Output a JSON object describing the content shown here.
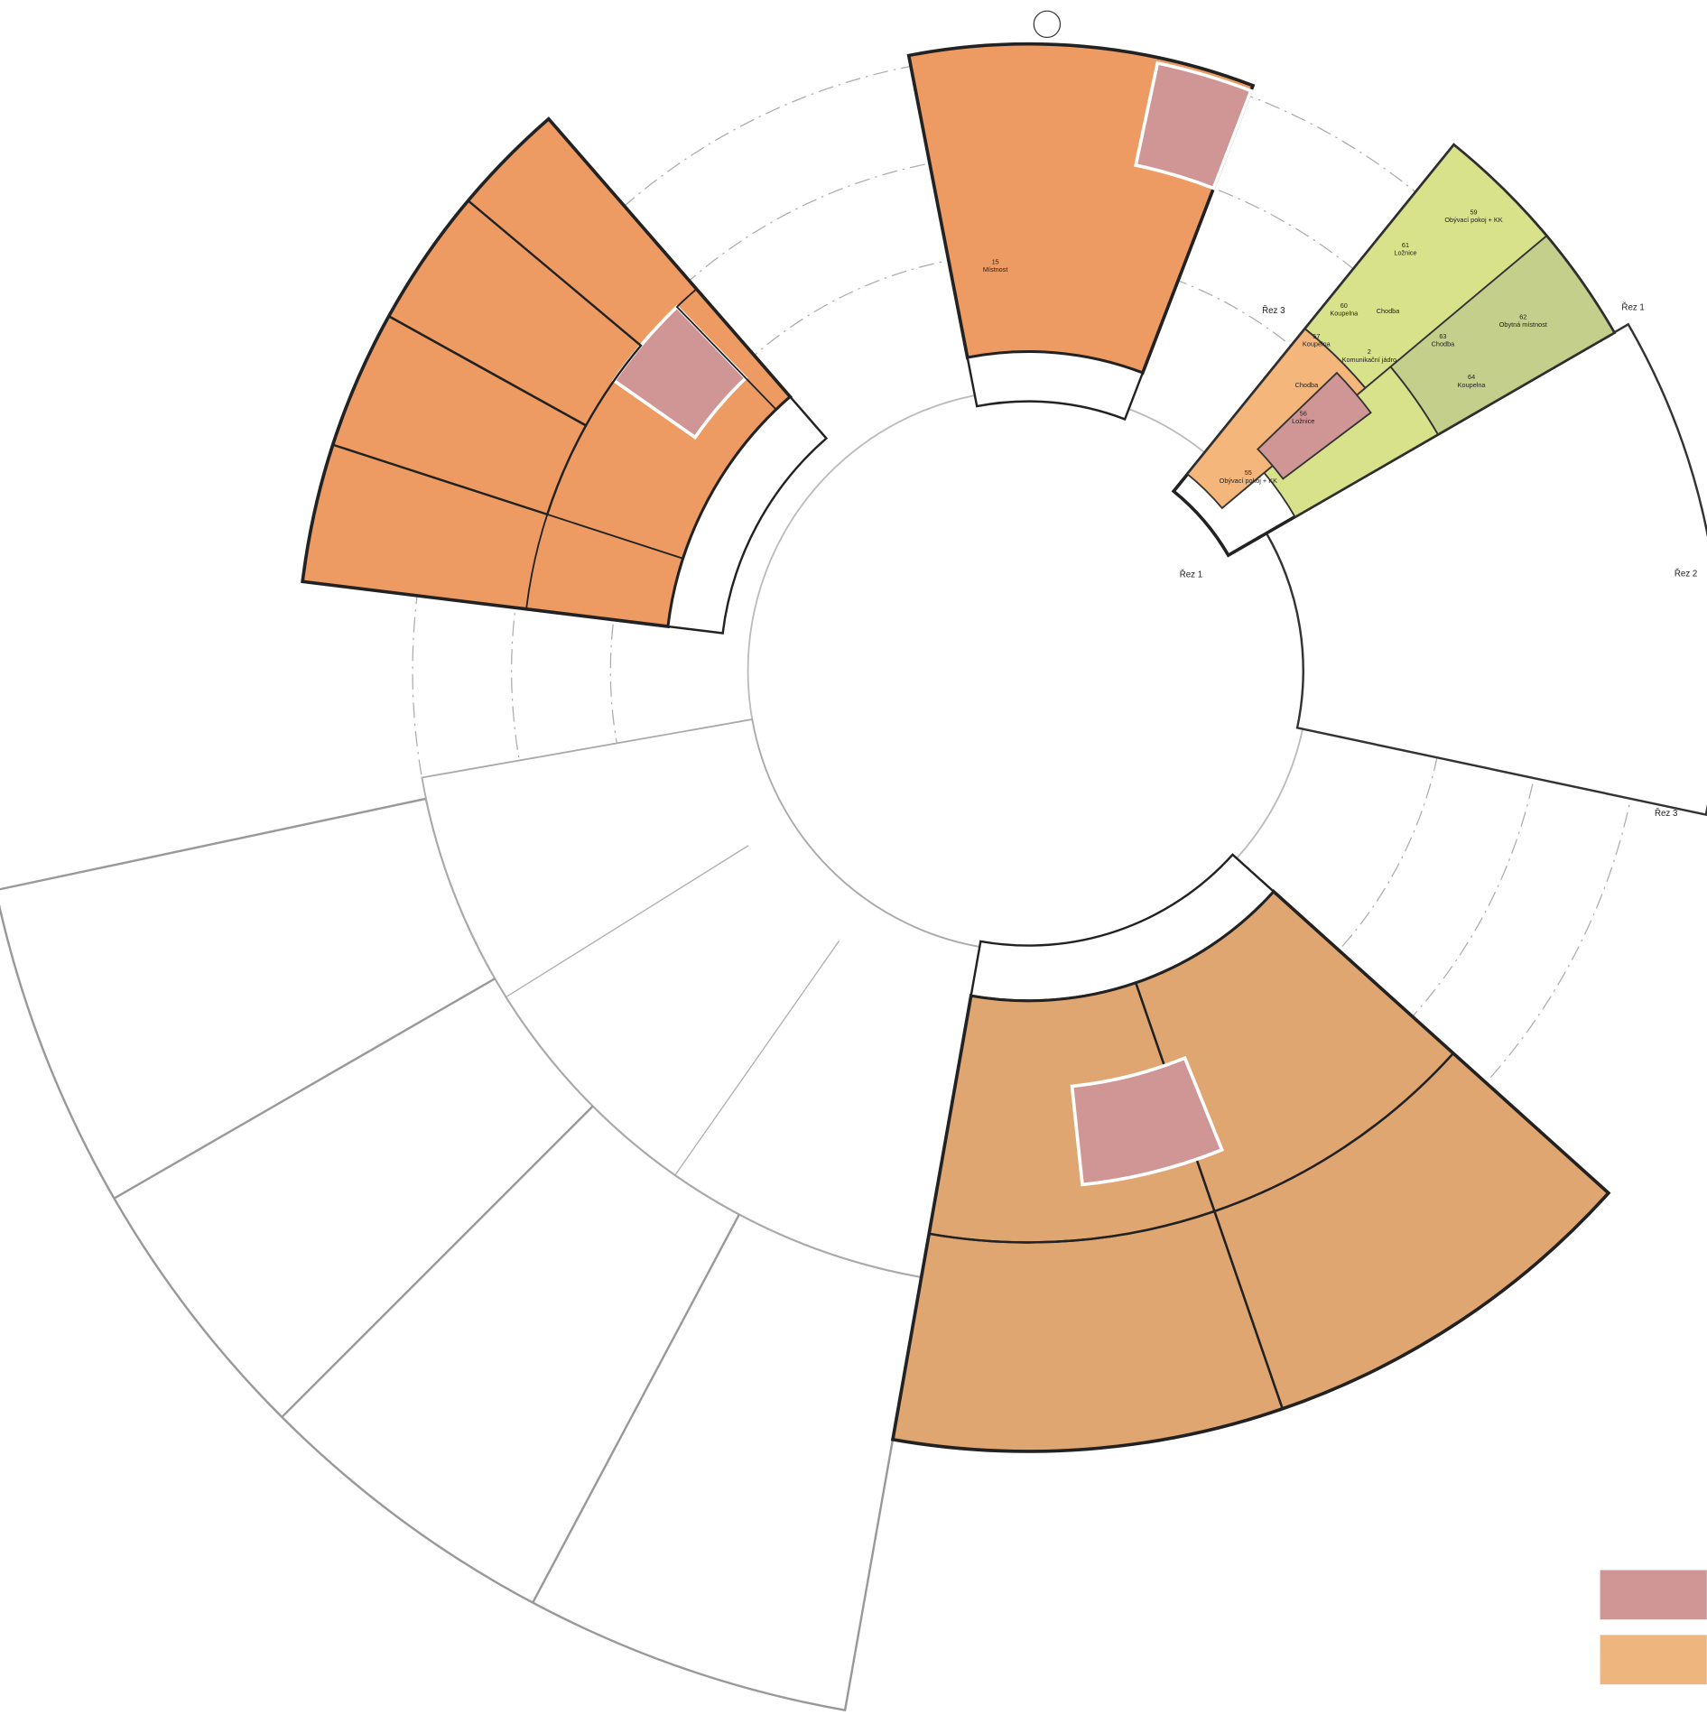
{
  "rooms": [
    {
      "number": "15",
      "name": "Místnost"
    },
    {
      "number": "59",
      "name": "Obývací pokoj + KK"
    },
    {
      "number": "61",
      "name": "Ložnice"
    },
    {
      "number": "60",
      "name": "Koupelna"
    },
    {
      "number": "",
      "name": "Chodba"
    },
    {
      "number": "62",
      "name": "Obytná místnost"
    },
    {
      "number": "2",
      "name": "Komunikační jádro"
    },
    {
      "number": "57",
      "name": "Koupelna"
    },
    {
      "number": "",
      "name": "Chodba"
    },
    {
      "number": "56",
      "name": "Ložnice"
    },
    {
      "number": "63",
      "name": "Chodba"
    },
    {
      "number": "64",
      "name": "Koupelna"
    },
    {
      "number": "55",
      "name": "Obývací pokoj + KK"
    }
  ],
  "sections": [
    "Řez 3",
    "Řez 1",
    "Řez 1",
    "Řez 2",
    "Řez 3"
  ]
}
